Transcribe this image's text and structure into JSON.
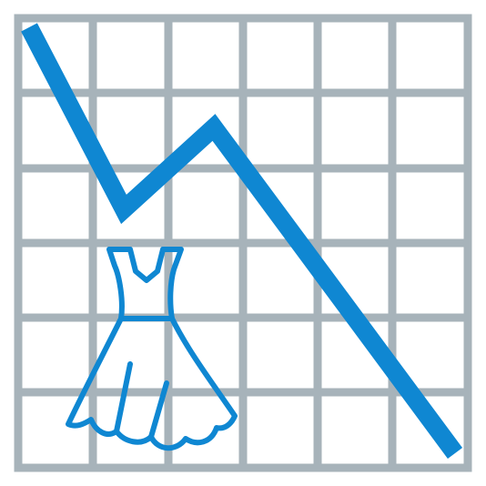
{
  "icon": {
    "name": "fashion-sales-decline-icon",
    "depicts": [
      "grid-chart",
      "downward-trend-line",
      "dress"
    ],
    "colors": {
      "background": "#ffffff",
      "grid": "#a7b3ba",
      "trend_line": "#0f87d2",
      "dress_outline": "#0f87d2"
    }
  }
}
